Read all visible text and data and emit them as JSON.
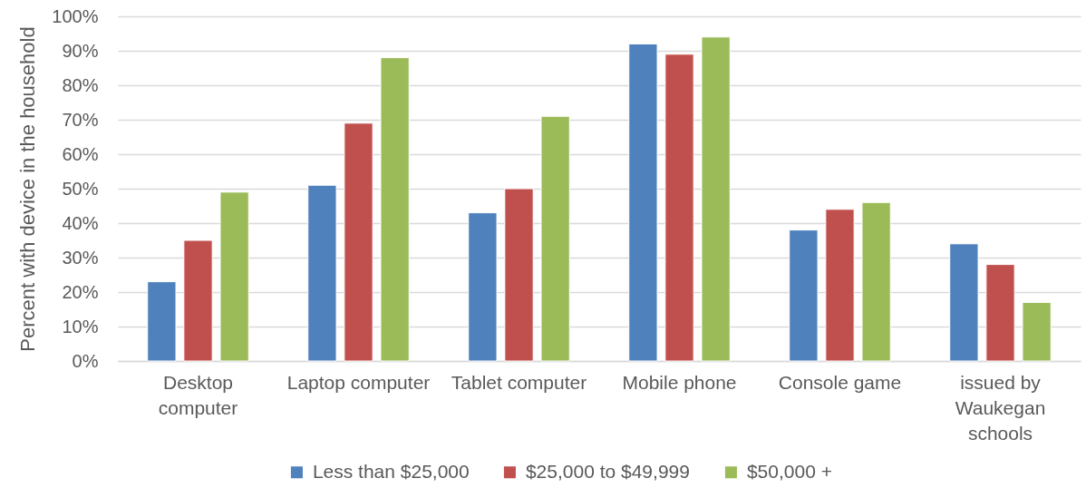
{
  "chart_data": {
    "type": "bar",
    "ylabel": "Percent with device in the household",
    "categories": [
      "Desktop computer",
      "Laptop computer",
      "Tablet computer",
      "Mobile phone",
      "Console game",
      "issued by Waukegan schools"
    ],
    "series": [
      {
        "name": "Less than $25,000",
        "color": "#4f81bd",
        "values": [
          23,
          51,
          43,
          92,
          38,
          34
        ]
      },
      {
        "name": "$25,000 to $49,999",
        "color": "#c0504d",
        "values": [
          35,
          69,
          50,
          89,
          44,
          28
        ]
      },
      {
        "name": "$50,000 +",
        "color": "#9bbb59",
        "values": [
          49,
          88,
          71,
          94,
          46,
          17
        ]
      }
    ],
    "ylim": [
      0,
      100
    ],
    "yticks": [
      {
        "value": 0,
        "label": "0%"
      },
      {
        "value": 10,
        "label": "10%"
      },
      {
        "value": 20,
        "label": "20%"
      },
      {
        "value": 30,
        "label": "30%"
      },
      {
        "value": 40,
        "label": "40%"
      },
      {
        "value": 50,
        "label": "50%"
      },
      {
        "value": 60,
        "label": "60%"
      },
      {
        "value": 70,
        "label": "70%"
      },
      {
        "value": 80,
        "label": "80%"
      },
      {
        "value": 90,
        "label": "90%"
      },
      {
        "value": 100,
        "label": "100%"
      }
    ],
    "grid": "y",
    "legend": "bottom"
  }
}
